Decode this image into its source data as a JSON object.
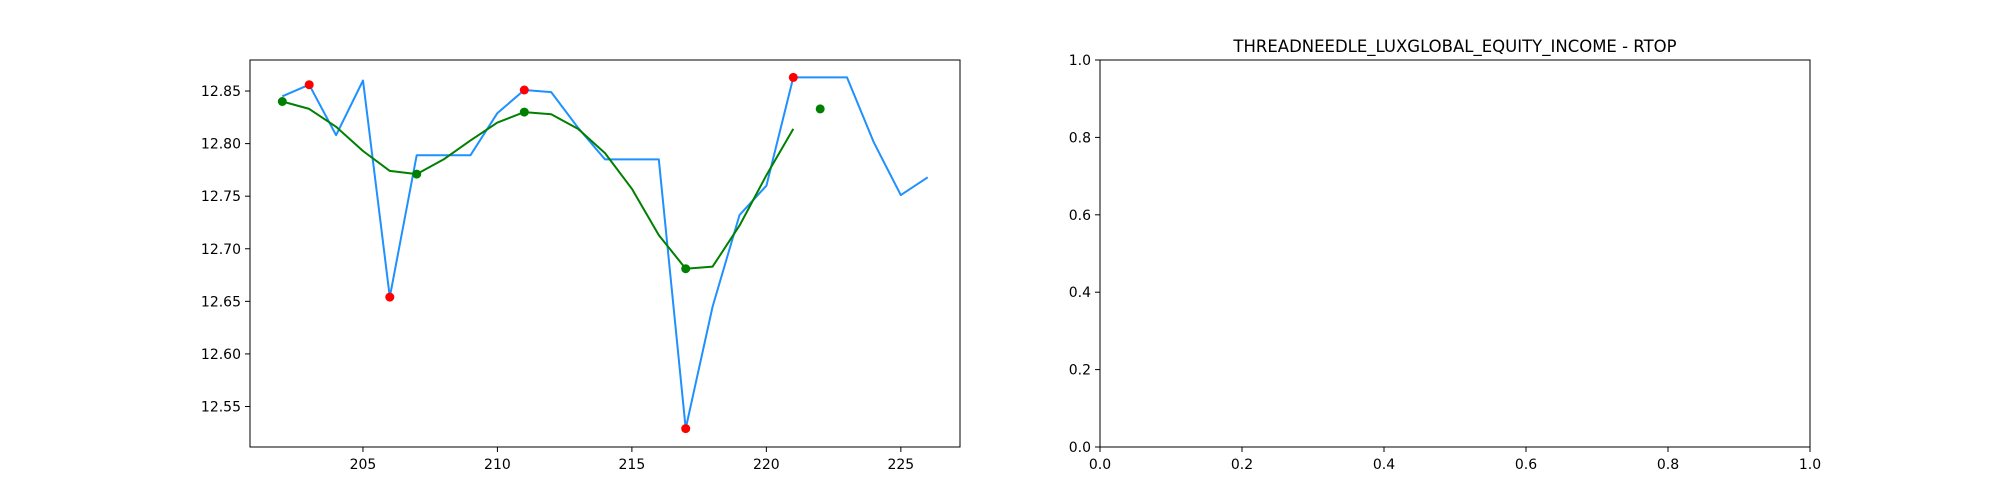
{
  "chart_data": [
    {
      "type": "line",
      "title": "",
      "xlabel": "",
      "ylabel": "",
      "xlim": [
        200.8,
        227.2
      ],
      "ylim": [
        12.5115,
        12.8795
      ],
      "x_ticks": [
        205,
        210,
        215,
        220,
        225
      ],
      "y_ticks": [
        12.55,
        12.6,
        12.65,
        12.7,
        12.75,
        12.8,
        12.85
      ],
      "x_tick_labels": [
        "205",
        "210",
        "215",
        "220",
        "225"
      ],
      "y_tick_labels": [
        "12.55",
        "12.60",
        "12.65",
        "12.70",
        "12.75",
        "12.80",
        "12.85"
      ],
      "grid": false,
      "legend": "none",
      "series": [
        {
          "style": "line",
          "color": "#1e90ff",
          "x": [
            202,
            203,
            204,
            205,
            206,
            207,
            208,
            209,
            210,
            211,
            212,
            213,
            214,
            215,
            216,
            217,
            218,
            219,
            220,
            221,
            222,
            223,
            224,
            225,
            226
          ],
          "y": [
            12.845,
            12.856,
            12.808,
            12.86,
            12.654,
            12.789,
            12.789,
            12.789,
            12.829,
            12.851,
            12.849,
            12.815,
            12.785,
            12.785,
            12.785,
            12.529,
            12.645,
            12.732,
            12.76,
            12.863,
            12.863,
            12.863,
            12.801,
            12.751,
            12.768
          ]
        },
        {
          "style": "line",
          "color": "#008000",
          "x": [
            202,
            203,
            204,
            205,
            206,
            207,
            208,
            209,
            210,
            211,
            212,
            213,
            214,
            215,
            216,
            217,
            218,
            219,
            220,
            221
          ],
          "y": [
            12.84,
            12.833,
            12.816,
            12.793,
            12.774,
            12.771,
            12.785,
            12.803,
            12.82,
            12.83,
            12.828,
            12.814,
            12.791,
            12.757,
            12.713,
            12.681,
            12.683,
            12.722,
            12.77,
            12.814
          ]
        },
        {
          "style": "scatter",
          "color": "#ff0000",
          "x": [
            203,
            206,
            211,
            217,
            221
          ],
          "y": [
            12.856,
            12.654,
            12.851,
            12.529,
            12.863
          ]
        },
        {
          "style": "scatter",
          "color": "#008000",
          "x": [
            202,
            207,
            211,
            217,
            222
          ],
          "y": [
            12.84,
            12.771,
            12.83,
            12.681,
            12.833
          ]
        }
      ]
    },
    {
      "type": "line",
      "title": "THREADNEEDLE_LUXGLOBAL_EQUITY_INCOME - RTOP",
      "xlabel": "",
      "ylabel": "",
      "xlim": [
        0,
        1
      ],
      "ylim": [
        0,
        1
      ],
      "x_ticks": [
        0,
        0.2,
        0.4,
        0.6,
        0.8,
        1.0
      ],
      "y_ticks": [
        0,
        0.2,
        0.4,
        0.6,
        0.8,
        1.0
      ],
      "x_tick_labels": [
        "0.0",
        "0.2",
        "0.4",
        "0.6",
        "0.8",
        "1.0"
      ],
      "y_tick_labels": [
        "0.0",
        "0.2",
        "0.4",
        "0.6",
        "0.8",
        "1.0"
      ],
      "grid": false,
      "legend": "none",
      "series": []
    }
  ]
}
